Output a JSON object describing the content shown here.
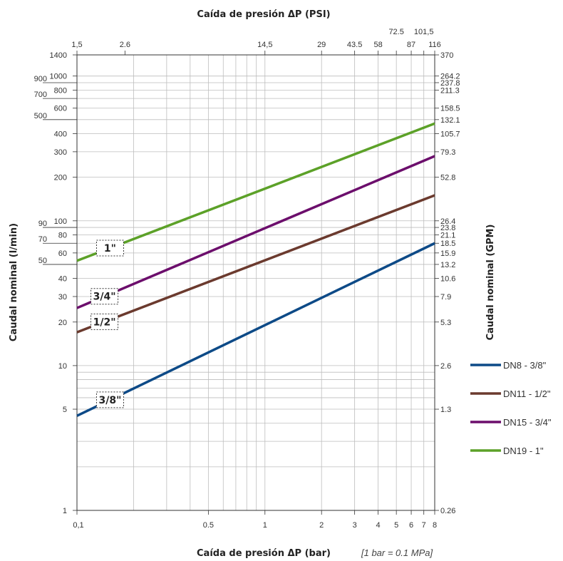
{
  "chart_data": {
    "type": "line",
    "title_top": "Caída de presión ΔP (PSI)",
    "xlabel": "Caída de presión ΔP (bar)",
    "xlabel_note": "[1 bar = 0.1 MPa]",
    "ylabel_left": "Caudal nominal (l/min)",
    "ylabel_right": "Caudal nominal (GPM)",
    "x_scale": "log",
    "y_scale": "log",
    "xlim": [
      0.1,
      8
    ],
    "ylim": [
      1,
      1400
    ],
    "grid": true,
    "legend_position": "right",
    "bottom_ticks": [
      {
        "v": 0.1,
        "label": "0,1"
      },
      {
        "v": 0.5,
        "label": "0.5"
      },
      {
        "v": 1,
        "label": "1"
      },
      {
        "v": 2,
        "label": "2"
      },
      {
        "v": 3,
        "label": "3"
      },
      {
        "v": 4,
        "label": "4"
      },
      {
        "v": 5,
        "label": "5"
      },
      {
        "v": 6,
        "label": "6"
      },
      {
        "v": 7,
        "label": "7"
      },
      {
        "v": 8,
        "label": "8"
      }
    ],
    "top_ticks": [
      {
        "v": 0.1,
        "label": "1,5",
        "row": 0
      },
      {
        "v": 0.18,
        "label": "2.6",
        "row": 0
      },
      {
        "v": 1,
        "label": "14,5",
        "row": 0
      },
      {
        "v": 2,
        "label": "29",
        "row": 0
      },
      {
        "v": 3,
        "label": "43.5",
        "row": 0
      },
      {
        "v": 4,
        "label": "58",
        "row": 0
      },
      {
        "v": 5,
        "label": "72.5",
        "row": 1
      },
      {
        "v": 6,
        "label": "87",
        "row": 0
      },
      {
        "v": 7,
        "label": "101,5",
        "row": 1
      },
      {
        "v": 8,
        "label": "116",
        "row": 0
      }
    ],
    "left_ticks": [
      {
        "v": 1,
        "label": "1"
      },
      {
        "v": 5,
        "label": "5"
      },
      {
        "v": 10,
        "label": "10"
      },
      {
        "v": 20,
        "label": "20"
      },
      {
        "v": 30,
        "label": "30"
      },
      {
        "v": 40,
        "label": "40"
      },
      {
        "v": 50,
        "label": "50"
      },
      {
        "v": 60,
        "label": "60"
      },
      {
        "v": 70,
        "label": "70"
      },
      {
        "v": 80,
        "label": "80"
      },
      {
        "v": 90,
        "label": "90"
      },
      {
        "v": 100,
        "label": "100"
      },
      {
        "v": 200,
        "label": "200"
      },
      {
        "v": 300,
        "label": "300"
      },
      {
        "v": 400,
        "label": "400"
      },
      {
        "v": 500,
        "label": "500"
      },
      {
        "v": 600,
        "label": "600"
      },
      {
        "v": 700,
        "label": "700"
      },
      {
        "v": 800,
        "label": "800"
      },
      {
        "v": 900,
        "label": "900"
      },
      {
        "v": 1000,
        "label": "1000"
      },
      {
        "v": 1400,
        "label": "1400"
      }
    ],
    "right_ticks": [
      {
        "v": 1,
        "label": "0.26"
      },
      {
        "v": 5,
        "label": "1.3"
      },
      {
        "v": 10,
        "label": "2.6"
      },
      {
        "v": 20,
        "label": "5.3"
      },
      {
        "v": 30,
        "label": "7.9"
      },
      {
        "v": 40,
        "label": "10.6"
      },
      {
        "v": 50,
        "label": "13.2"
      },
      {
        "v": 60,
        "label": "15.9"
      },
      {
        "v": 70,
        "label": "18.5"
      },
      {
        "v": 80,
        "label": "21.1"
      },
      {
        "v": 90,
        "label": "23.8"
      },
      {
        "v": 100,
        "label": "26.4"
      },
      {
        "v": 200,
        "label": "52.8"
      },
      {
        "v": 300,
        "label": "79.3"
      },
      {
        "v": 400,
        "label": "105.7"
      },
      {
        "v": 500,
        "label": "132.1"
      },
      {
        "v": 600,
        "label": "158.5"
      },
      {
        "v": 800,
        "label": "211.3"
      },
      {
        "v": 900,
        "label": "237.8"
      },
      {
        "v": 1000,
        "label": "264.2"
      },
      {
        "v": 1400,
        "label": "370"
      }
    ],
    "series": [
      {
        "name": "DN8 - 3/8\"",
        "label": "3/8\"",
        "color": "#0d4a87",
        "x": [
          0.1,
          8
        ],
        "y": [
          4.5,
          70
        ],
        "label_at": 0.15
      },
      {
        "name": "DN11 - 1/2\"",
        "label": "1/2\"",
        "color": "#6b3a2e",
        "x": [
          0.1,
          8
        ],
        "y": [
          17,
          150
        ],
        "label_at": 0.14
      },
      {
        "name": "DN15 - 3/4\"",
        "label": "3/4\"",
        "color": "#6c0e6c",
        "x": [
          0.1,
          8
        ],
        "y": [
          25,
          280
        ],
        "label_at": 0.14
      },
      {
        "name": "DN19 - 1\"",
        "label": "1\"",
        "color": "#5ca128",
        "x": [
          0.1,
          8
        ],
        "y": [
          53,
          470
        ],
        "label_at": 0.15
      }
    ]
  }
}
